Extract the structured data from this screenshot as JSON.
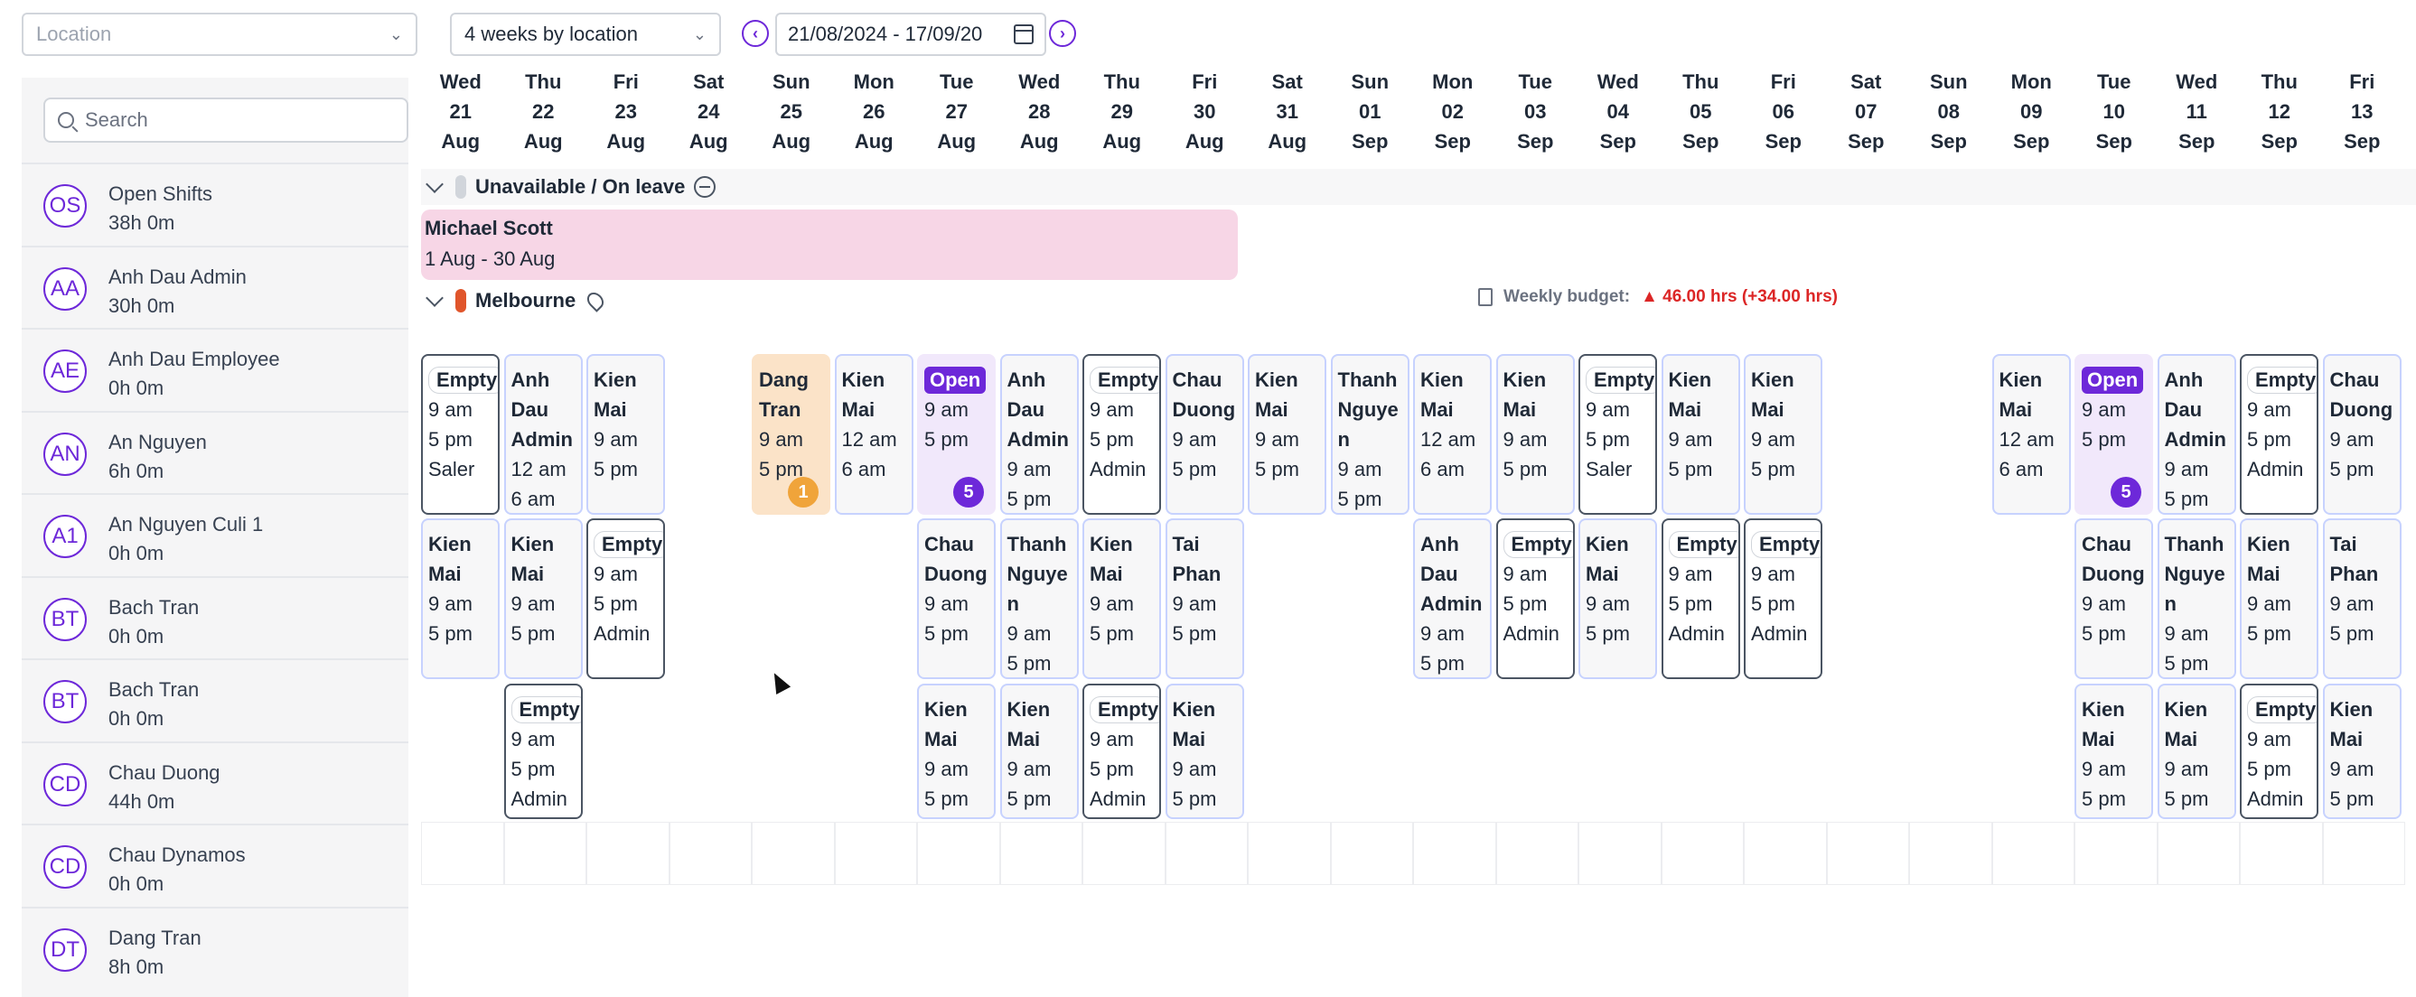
{
  "toolbar": {
    "location_placeholder": "Location",
    "view_mode": "4 weeks by location",
    "date_range": "21/08/2024 - 17/09/20",
    "prev_symbol": "‹",
    "next_symbol": "›"
  },
  "sidebar": {
    "search_placeholder": "Search",
    "people": [
      {
        "initials": "OS",
        "name": "Open Shifts",
        "hours": "38h 0m"
      },
      {
        "initials": "AA",
        "name": "Anh Dau Admin",
        "hours": "30h 0m"
      },
      {
        "initials": "AE",
        "name": "Anh Dau Employee",
        "hours": "0h 0m"
      },
      {
        "initials": "AN",
        "name": "An Nguyen",
        "hours": "6h 0m"
      },
      {
        "initials": "A1",
        "name": "An Nguyen Culi 1",
        "hours": "0h 0m"
      },
      {
        "initials": "BT",
        "name": "Bach Tran",
        "hours": "0h 0m"
      },
      {
        "initials": "BT",
        "name": "Bach Tran",
        "hours": "0h 0m"
      },
      {
        "initials": "CD",
        "name": "Chau Duong",
        "hours": "44h 0m"
      },
      {
        "initials": "CD",
        "name": "Chau Dynamos",
        "hours": "0h 0m"
      },
      {
        "initials": "DT",
        "name": "Dang Tran",
        "hours": "8h 0m"
      }
    ]
  },
  "days": [
    {
      "dow": "Wed",
      "num": "21",
      "mon": "Aug"
    },
    {
      "dow": "Thu",
      "num": "22",
      "mon": "Aug"
    },
    {
      "dow": "Fri",
      "num": "23",
      "mon": "Aug"
    },
    {
      "dow": "Sat",
      "num": "24",
      "mon": "Aug"
    },
    {
      "dow": "Sun",
      "num": "25",
      "mon": "Aug"
    },
    {
      "dow": "Mon",
      "num": "26",
      "mon": "Aug"
    },
    {
      "dow": "Tue",
      "num": "27",
      "mon": "Aug"
    },
    {
      "dow": "Wed",
      "num": "28",
      "mon": "Aug"
    },
    {
      "dow": "Thu",
      "num": "29",
      "mon": "Aug"
    },
    {
      "dow": "Fri",
      "num": "30",
      "mon": "Aug"
    },
    {
      "dow": "Sat",
      "num": "31",
      "mon": "Aug"
    },
    {
      "dow": "Sun",
      "num": "01",
      "mon": "Sep"
    },
    {
      "dow": "Mon",
      "num": "02",
      "mon": "Sep"
    },
    {
      "dow": "Tue",
      "num": "03",
      "mon": "Sep"
    },
    {
      "dow": "Wed",
      "num": "04",
      "mon": "Sep"
    },
    {
      "dow": "Thu",
      "num": "05",
      "mon": "Sep"
    },
    {
      "dow": "Fri",
      "num": "06",
      "mon": "Sep"
    },
    {
      "dow": "Sat",
      "num": "07",
      "mon": "Sep"
    },
    {
      "dow": "Sun",
      "num": "08",
      "mon": "Sep"
    },
    {
      "dow": "Mon",
      "num": "09",
      "mon": "Sep"
    },
    {
      "dow": "Tue",
      "num": "10",
      "mon": "Sep"
    },
    {
      "dow": "Wed",
      "num": "11",
      "mon": "Sep"
    },
    {
      "dow": "Thu",
      "num": "12",
      "mon": "Sep"
    },
    {
      "dow": "Fri",
      "num": "13",
      "mon": "Sep"
    }
  ],
  "groups": {
    "unavailable_label": "Unavailable / On leave",
    "unavailable_color": "#d1d5db",
    "leave": {
      "name": "Michael Scott",
      "dates": "1 Aug - 30 Aug"
    },
    "location_label": "Melbourne",
    "location_color": "#e0552b",
    "budget_label": "Weekly budget:",
    "budget_value": "▲ 46.00 hrs (+34.00 hrs)"
  },
  "shifts": [
    {
      "col": 0,
      "row": 0,
      "kind": "empty",
      "lines": [
        "Empty",
        "9 am",
        "5 pm",
        "Saler"
      ]
    },
    {
      "col": 1,
      "row": 0,
      "kind": "normal",
      "lines": [
        "Anh",
        "Dau",
        "Admin",
        "12 am",
        "6 am"
      ]
    },
    {
      "col": 2,
      "row": 0,
      "kind": "normal",
      "lines": [
        "Kien",
        "Mai",
        "9 am",
        "5 pm"
      ]
    },
    {
      "col": 4,
      "row": 0,
      "kind": "dang",
      "lines": [
        "Dang",
        "Tran",
        "9 am",
        "5 pm"
      ],
      "badge": "1",
      "badge_color": "#f0a43a"
    },
    {
      "col": 5,
      "row": 0,
      "kind": "normal",
      "lines": [
        "Kien",
        "Mai",
        "12 am",
        "6 am"
      ]
    },
    {
      "col": 6,
      "row": 0,
      "kind": "open",
      "lines": [
        "Open",
        "9 am",
        "5 pm"
      ],
      "badge": "5",
      "badge_color": "#6d28d9"
    },
    {
      "col": 7,
      "row": 0,
      "kind": "normal",
      "lines": [
        "Anh",
        "Dau",
        "Admin",
        "9 am",
        "5 pm"
      ]
    },
    {
      "col": 8,
      "row": 0,
      "kind": "empty",
      "lines": [
        "Empty",
        "9 am",
        "5 pm",
        "Admin"
      ]
    },
    {
      "col": 9,
      "row": 0,
      "kind": "normal",
      "lines": [
        "Chau",
        "Duong",
        "9 am",
        "5 pm"
      ]
    },
    {
      "col": 10,
      "row": 0,
      "kind": "normal",
      "lines": [
        "Kien",
        "Mai",
        "9 am",
        "5 pm"
      ]
    },
    {
      "col": 11,
      "row": 0,
      "kind": "normal",
      "lines": [
        "Thanh",
        "Nguye",
        "n",
        "9 am",
        "5 pm"
      ]
    },
    {
      "col": 12,
      "row": 0,
      "kind": "normal",
      "lines": [
        "Kien",
        "Mai",
        "12 am",
        "6 am"
      ]
    },
    {
      "col": 13,
      "row": 0,
      "kind": "normal",
      "lines": [
        "Kien",
        "Mai",
        "9 am",
        "5 pm"
      ]
    },
    {
      "col": 14,
      "row": 0,
      "kind": "empty",
      "lines": [
        "Empty",
        "9 am",
        "5 pm",
        "Saler"
      ]
    },
    {
      "col": 15,
      "row": 0,
      "kind": "normal",
      "lines": [
        "Kien",
        "Mai",
        "9 am",
        "5 pm"
      ]
    },
    {
      "col": 16,
      "row": 0,
      "kind": "normal",
      "lines": [
        "Kien",
        "Mai",
        "9 am",
        "5 pm"
      ]
    },
    {
      "col": 19,
      "row": 0,
      "kind": "normal",
      "lines": [
        "Kien",
        "Mai",
        "12 am",
        "6 am"
      ]
    },
    {
      "col": 20,
      "row": 0,
      "kind": "open",
      "lines": [
        "Open",
        "9 am",
        "5 pm"
      ],
      "badge": "5",
      "badge_color": "#6d28d9"
    },
    {
      "col": 21,
      "row": 0,
      "kind": "normal",
      "lines": [
        "Anh",
        "Dau",
        "Admin",
        "9 am",
        "5 pm"
      ]
    },
    {
      "col": 22,
      "row": 0,
      "kind": "empty",
      "lines": [
        "Empty",
        "9 am",
        "5 pm",
        "Admin"
      ]
    },
    {
      "col": 23,
      "row": 0,
      "kind": "normal",
      "lines": [
        "Chau",
        "Duong",
        "9 am",
        "5 pm"
      ]
    },
    {
      "col": 0,
      "row": 1,
      "kind": "normal",
      "lines": [
        "Kien",
        "Mai",
        "9 am",
        "5 pm"
      ]
    },
    {
      "col": 1,
      "row": 1,
      "kind": "normal",
      "lines": [
        "Kien",
        "Mai",
        "9 am",
        "5 pm"
      ]
    },
    {
      "col": 2,
      "row": 1,
      "kind": "empty",
      "lines": [
        "Empty",
        "9 am",
        "5 pm",
        "Admin"
      ]
    },
    {
      "col": 6,
      "row": 1,
      "kind": "normal",
      "lines": [
        "Chau",
        "Duong",
        "9 am",
        "5 pm"
      ]
    },
    {
      "col": 7,
      "row": 1,
      "kind": "normal",
      "lines": [
        "Thanh",
        "Nguye",
        "n",
        "9 am",
        "5 pm"
      ]
    },
    {
      "col": 8,
      "row": 1,
      "kind": "normal",
      "lines": [
        "Kien",
        "Mai",
        "9 am",
        "5 pm"
      ]
    },
    {
      "col": 9,
      "row": 1,
      "kind": "normal",
      "lines": [
        "Tai",
        "Phan",
        "9 am",
        "5 pm"
      ]
    },
    {
      "col": 12,
      "row": 1,
      "kind": "normal",
      "lines": [
        "Anh",
        "Dau",
        "Admin",
        "9 am",
        "5 pm"
      ]
    },
    {
      "col": 13,
      "row": 1,
      "kind": "empty",
      "lines": [
        "Empty",
        "9 am",
        "5 pm",
        "Admin"
      ]
    },
    {
      "col": 14,
      "row": 1,
      "kind": "normal",
      "lines": [
        "Kien",
        "Mai",
        "9 am",
        "5 pm"
      ]
    },
    {
      "col": 15,
      "row": 1,
      "kind": "empty",
      "lines": [
        "Empty",
        "9 am",
        "5 pm",
        "Admin"
      ]
    },
    {
      "col": 16,
      "row": 1,
      "kind": "empty",
      "lines": [
        "Empty",
        "9 am",
        "5 pm",
        "Admin"
      ]
    },
    {
      "col": 20,
      "row": 1,
      "kind": "normal",
      "lines": [
        "Chau",
        "Duong",
        "9 am",
        "5 pm"
      ]
    },
    {
      "col": 21,
      "row": 1,
      "kind": "normal",
      "lines": [
        "Thanh",
        "Nguye",
        "n",
        "9 am",
        "5 pm"
      ]
    },
    {
      "col": 22,
      "row": 1,
      "kind": "normal",
      "lines": [
        "Kien",
        "Mai",
        "9 am",
        "5 pm"
      ]
    },
    {
      "col": 23,
      "row": 1,
      "kind": "normal",
      "lines": [
        "Tai",
        "Phan",
        "9 am",
        "5 pm"
      ]
    },
    {
      "col": 1,
      "row": 2,
      "kind": "empty",
      "lines": [
        "Empty",
        "9 am",
        "5 pm",
        "Admin"
      ]
    },
    {
      "col": 6,
      "row": 2,
      "kind": "normal",
      "lines": [
        "Kien",
        "Mai",
        "9 am",
        "5 pm"
      ]
    },
    {
      "col": 7,
      "row": 2,
      "kind": "normal",
      "lines": [
        "Kien",
        "Mai",
        "9 am",
        "5 pm"
      ]
    },
    {
      "col": 8,
      "row": 2,
      "kind": "empty",
      "lines": [
        "Empty",
        "9 am",
        "5 pm",
        "Admin"
      ]
    },
    {
      "col": 9,
      "row": 2,
      "kind": "normal",
      "lines": [
        "Kien",
        "Mai",
        "9 am",
        "5 pm"
      ]
    },
    {
      "col": 20,
      "row": 2,
      "kind": "normal",
      "lines": [
        "Kien",
        "Mai",
        "9 am",
        "5 pm"
      ]
    },
    {
      "col": 21,
      "row": 2,
      "kind": "normal",
      "lines": [
        "Kien",
        "Mai",
        "9 am",
        "5 pm"
      ]
    },
    {
      "col": 22,
      "row": 2,
      "kind": "empty",
      "lines": [
        "Empty",
        "9 am",
        "5 pm",
        "Admin"
      ]
    },
    {
      "col": 23,
      "row": 2,
      "kind": "normal",
      "lines": [
        "Kien",
        "Mai",
        "9 am",
        "5 pm"
      ]
    }
  ]
}
